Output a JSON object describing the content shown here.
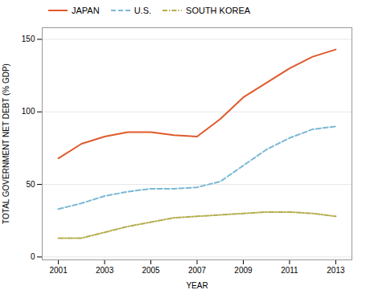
{
  "chart_data": {
    "type": "line",
    "xlabel": "YEAR",
    "ylabel": "TOTAL GOVERNMENT NET DEBT (% GDP)",
    "x": [
      2001,
      2002,
      2003,
      2004,
      2005,
      2006,
      2007,
      2008,
      2009,
      2010,
      2011,
      2012,
      2013
    ],
    "series": [
      {
        "name": "JAPAN",
        "color": "#e05a2b",
        "line_style": "solid",
        "values": [
          68,
          78,
          83,
          86,
          86,
          84,
          83,
          95,
          110,
          120,
          130,
          138,
          143
        ]
      },
      {
        "name": "U.S.",
        "color": "#7ab8d4",
        "line_style": "dashed",
        "values": [
          33,
          37,
          42,
          45,
          47,
          47,
          48,
          52,
          63,
          74,
          82,
          88,
          90
        ]
      },
      {
        "name": "SOUTH KOREA",
        "color": "#b5ad4e",
        "line_style": "dashdot",
        "values": [
          13,
          13,
          17,
          21,
          24,
          27,
          28,
          29,
          30,
          31,
          31,
          30,
          28
        ]
      }
    ],
    "xlim": [
      2000.3,
      2013.7
    ],
    "xticks": [
      2001,
      2003,
      2005,
      2007,
      2009,
      2011,
      2013
    ],
    "ylim": [
      -2,
      158
    ],
    "yticks": [
      0,
      50,
      100,
      150
    ],
    "grid": true,
    "legend": "upper left"
  }
}
